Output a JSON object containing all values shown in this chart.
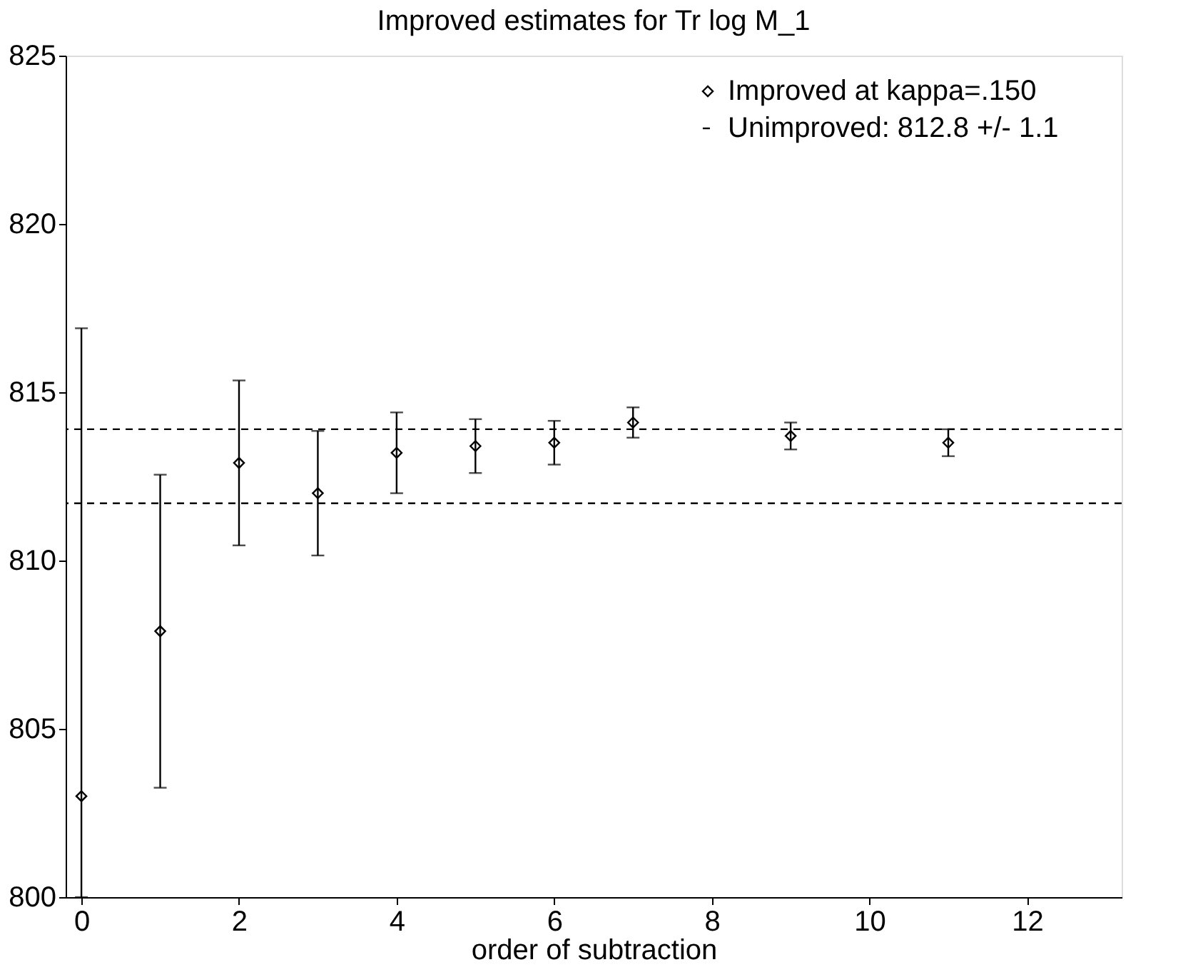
{
  "chart_data": {
    "type": "scatter",
    "title": "Improved estimates for Tr log M_1",
    "xlabel": "order of subtraction",
    "xlim": [
      -0.2,
      13.2
    ],
    "xticks": [
      0,
      2,
      4,
      6,
      8,
      10,
      12
    ],
    "ylim": [
      800,
      825
    ],
    "yticks": [
      800,
      805,
      810,
      815,
      820,
      825
    ],
    "series": [
      {
        "name": "Improved at kappa=.150",
        "color": "#000000",
        "x": [
          0,
          1,
          2,
          3,
          4,
          5,
          6,
          7,
          9,
          11
        ],
        "values": [
          803.0,
          807.9,
          812.9,
          812.0,
          813.2,
          813.4,
          813.5,
          814.1,
          813.7,
          813.5
        ],
        "errors": [
          [
            800,
            816.9
          ],
          4.65,
          2.45,
          1.85,
          1.2,
          0.8,
          0.65,
          0.45,
          0.4,
          0.4
        ]
      }
    ],
    "ref_lines": [
      {
        "axis": "y",
        "value": 813.9,
        "color": "#000000",
        "line_style": "dashed"
      },
      {
        "axis": "y",
        "value": 811.7,
        "color": "#000000",
        "line_style": "dashed"
      }
    ],
    "annotations": [
      "Unimproved: 812.8 +/- 1.1"
    ],
    "marker": "diamond",
    "legend": "top right",
    "grid": false
  }
}
